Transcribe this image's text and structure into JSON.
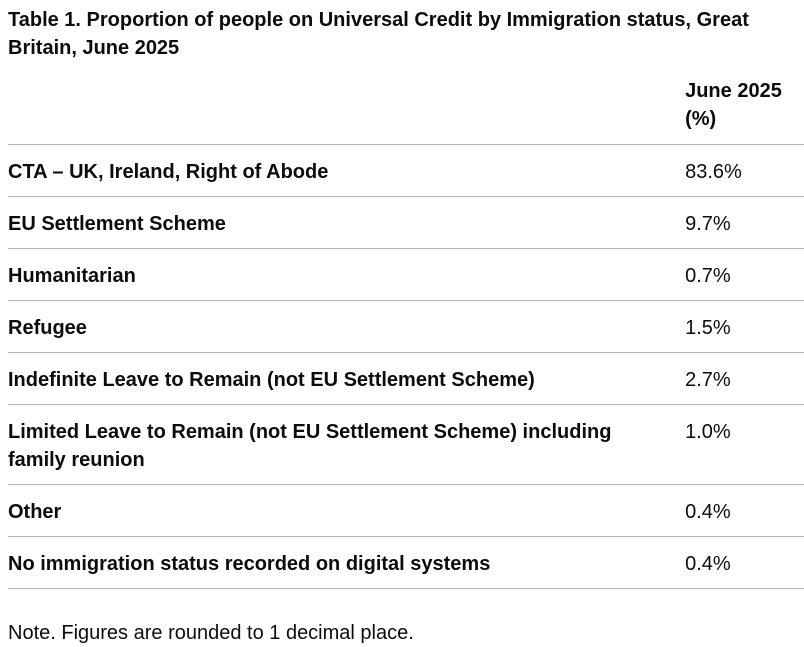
{
  "table": {
    "caption": "Table 1. Proportion of people on Universal Credit by Immigration status, Great Britain, June 2025",
    "header": {
      "label": "",
      "value": "June 2025 (%)"
    },
    "rows": [
      {
        "label": "CTA – UK, Ireland, Right of Abode",
        "value": "83.6%"
      },
      {
        "label": "EU Settlement Scheme",
        "value": "9.7%"
      },
      {
        "label": "Humanitarian",
        "value": "0.7%"
      },
      {
        "label": "Refugee",
        "value": "1.5%"
      },
      {
        "label": "Indefinite Leave to Remain (not EU Settlement Scheme)",
        "value": "2.7%"
      },
      {
        "label": "Limited Leave to Remain (not EU Settlement Scheme) including family reunion",
        "value": "1.0%"
      },
      {
        "label": "Other",
        "value": "0.4%"
      },
      {
        "label": "No immigration status recorded on digital systems",
        "value": "0.4%"
      }
    ],
    "note": "Note. Figures are rounded to 1 decimal place."
  }
}
